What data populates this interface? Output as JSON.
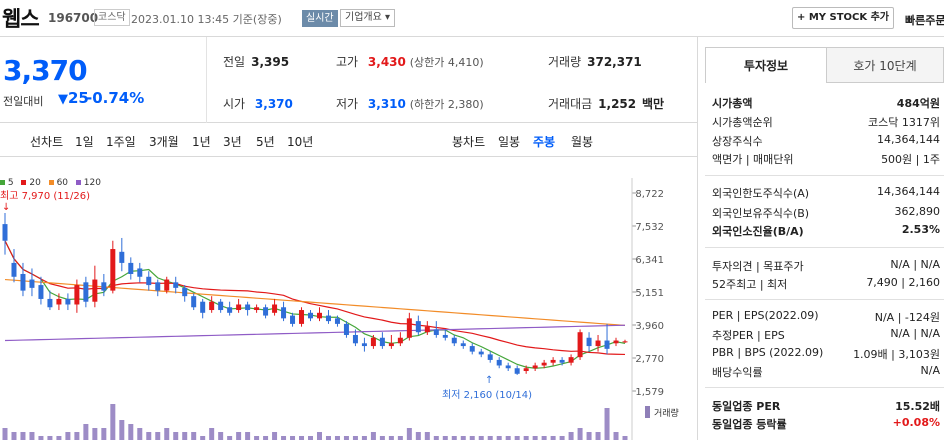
{
  "header": {
    "name": "웹스",
    "code": "196700",
    "market_badge": "코스닥",
    "datetime": "2023.01.10 13:45 기준(장중)",
    "realtime": "실시간",
    "corp_info": "기업개요",
    "mystock": "+ MY STOCK 추가",
    "quick": "빠른주문"
  },
  "quote": {
    "price": "3,370",
    "change_label": "전일대비",
    "change_arrow": "▼",
    "change": "25",
    "change_pct": "-0.74%",
    "prev_label": "전일",
    "prev": "3,395",
    "open_label": "시가",
    "open": "3,370",
    "high_label": "고가",
    "high": "3,430",
    "upper_limit": "(상한가 4,410)",
    "low_label": "저가",
    "low": "3,310",
    "lower_limit": "(하한가 2,380)",
    "volume_label": "거래량",
    "volume": "372,371",
    "amount_label": "거래대금",
    "amount": "1,252",
    "amount_unit": "백만"
  },
  "tabs": {
    "line": "선차트",
    "d1": "1일",
    "w1": "1주일",
    "m3": "3개월",
    "y1": "1년",
    "y3": "3년",
    "y5": "5년",
    "y10": "10년",
    "candle": "봉차트",
    "daily": "일봉",
    "weekly": "주봉",
    "monthly": "월봉"
  },
  "legend": {
    "ma5": "5",
    "ma20": "20",
    "ma60": "60",
    "ma120": "120",
    "ma5_color": "#45a63a",
    "ma20_color": "#e2191a",
    "ma60_color": "#f28c28",
    "ma120_color": "#8f5cc6"
  },
  "chart_data": {
    "type": "candlestick",
    "price_ticks": [
      "8,722",
      "7,532",
      "6,341",
      "5,151",
      "3,960",
      "2,770",
      "1,579"
    ],
    "high_note": "최고 7,970 (11/26)",
    "low_note": "최저 2,160 (10/14)",
    "volume_label": "거래량",
    "up_color": "#e2191a",
    "down_color": "#2f6ed8"
  },
  "panel": {
    "tab_invest": "투자정보",
    "tab_hoga": "호가 10단계",
    "rows": [
      {
        "k": "시가총액",
        "v": "484억원"
      },
      {
        "k": "시가총액순위",
        "v": "코스닥 1317위"
      },
      {
        "k": "상장주식수",
        "v": "14,364,144"
      },
      {
        "k": "액면가 | 매매단위",
        "v": "500원 | 1주"
      },
      {
        "k": "외국인한도주식수(A)",
        "v": "14,364,144"
      },
      {
        "k": "외국인보유주식수(B)",
        "v": "362,890"
      },
      {
        "k": "외국인소진율(B/A)",
        "v": "2.53%"
      },
      {
        "k": "투자의견 | 목표주가",
        "v": "N/A | N/A"
      },
      {
        "k": "52주최고 | 최저",
        "v": "7,490 | 2,160"
      },
      {
        "k": "PER | EPS(2022.09)",
        "v": "N/A | -124원"
      },
      {
        "k": "추정PER | EPS",
        "v": "N/A | N/A"
      },
      {
        "k": "PBR | BPS (2022.09)",
        "v": "1.09배 | 3,103원"
      },
      {
        "k": "배당수익률",
        "v": "N/A"
      },
      {
        "k": "동일업종 PER",
        "v": "15.52배"
      },
      {
        "k": "동일업종 등락률",
        "v": "+0.08%"
      }
    ]
  }
}
